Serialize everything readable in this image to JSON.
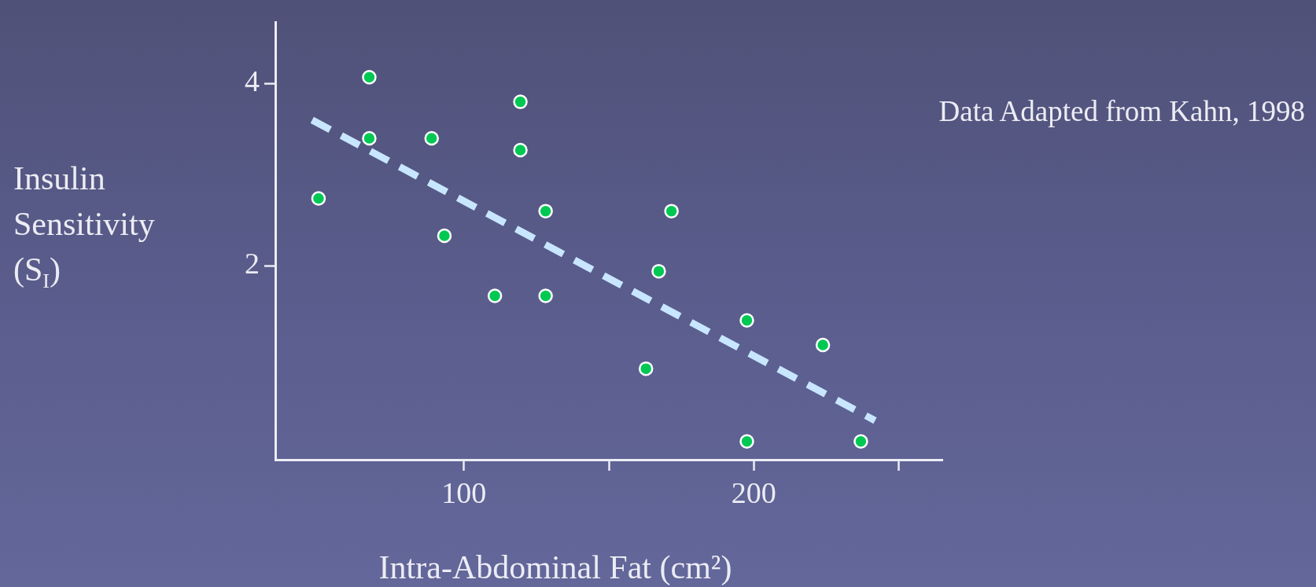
{
  "chart_data": {
    "type": "scatter",
    "xlabel": "Intra-Abdominal Fat (cm²)",
    "ylabel": "Insulin Sensitivity (S$_{I}$)",
    "annotations": [
      "Data Adapted from Kahn, 1998"
    ],
    "xlim": [
      35,
      265
    ],
    "xticks": [
      100,
      {
        "value": 150,
        "label": null
      },
      200,
      {
        "value": 250,
        "label": null
      }
    ],
    "ylim": [
      -0.13,
      4.67
    ],
    "yticks": [
      2,
      4
    ],
    "marker": "circle",
    "legend": false,
    "series": [
      {
        "color": "#00c853",
        "x": [
          49.9,
          67.4,
          67.4,
          88.9,
          93.3,
          119.5,
          119.5,
          110.7,
          128.2,
          128.2,
          171.6,
          167.2,
          162.8,
          197.6,
          223.8,
          197.6,
          236.9
        ],
        "values": [
          2.74,
          4.07,
          3.4,
          3.4,
          2.33,
          3.8,
          3.27,
          1.67,
          2.6,
          1.67,
          2.6,
          1.94,
          0.87,
          1.4,
          1.13,
          0.07,
          0.07
        ]
      },
      {
        "type": "line",
        "color": "#c8e6ff",
        "line_style": "dashed",
        "marker": "none",
        "x": [
          47.7,
          241.8
        ],
        "values": [
          3.6,
          0.3
        ]
      }
    ]
  }
}
